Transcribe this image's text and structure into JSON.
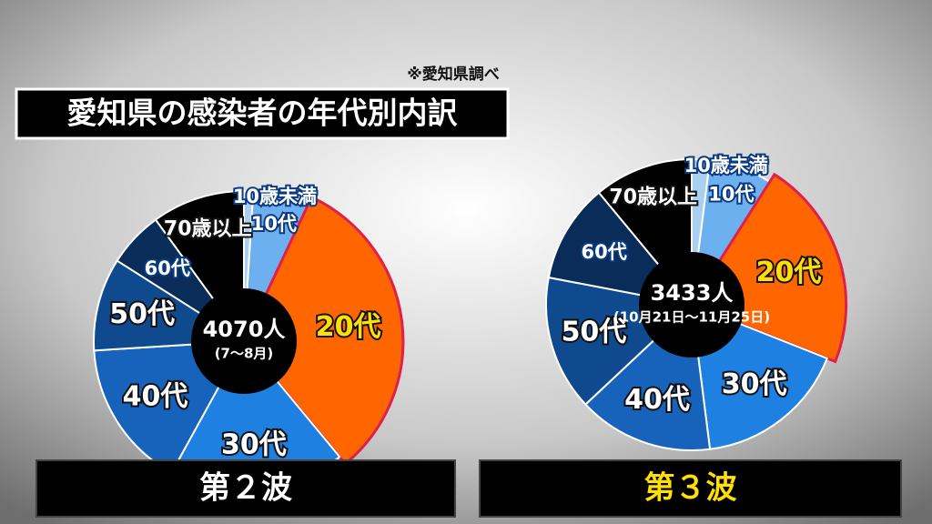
{
  "header": {
    "title": "愛知県の感染者の年代別内訳",
    "note": "※愛知県調べ"
  },
  "chart_data": [
    {
      "type": "pie",
      "title": "第２波",
      "total_label": "4070人",
      "period": "(7～8月)",
      "categories": [
        "10歳未満",
        "10代",
        "20代",
        "30代",
        "40代",
        "50代",
        "60代",
        "70歳以上"
      ],
      "values": [
        1,
        6,
        32,
        19,
        16,
        10,
        6,
        10
      ],
      "colors": [
        "#a9cff2",
        "#6db0f0",
        "#ff6600",
        "#1e80e0",
        "#1762bb",
        "#0f4a8e",
        "#0a2c58",
        "#000000"
      ]
    },
    {
      "type": "pie",
      "title": "第３波",
      "total_label": "3433人",
      "period": "(10月21日～11月25日)",
      "categories": [
        "10歳未満",
        "10代",
        "20代",
        "30代",
        "40代",
        "50代",
        "60代",
        "70歳以上"
      ],
      "values": [
        2,
        7,
        22,
        17,
        15,
        15,
        11,
        11
      ],
      "colors": [
        "#a9cff2",
        "#6db0f0",
        "#ff6600",
        "#1e80e0",
        "#1762bb",
        "#0f4a8e",
        "#0a2c58",
        "#000000"
      ]
    }
  ]
}
